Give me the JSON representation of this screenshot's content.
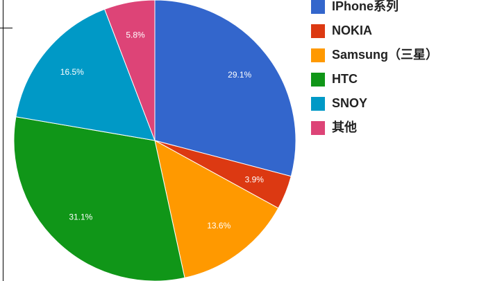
{
  "chart_data": {
    "type": "pie",
    "categories": [
      "IPhone系列",
      "NOKIA",
      "Samsung（三星）",
      "HTC",
      "SNOY",
      "其他"
    ],
    "values": [
      29.1,
      3.9,
      13.6,
      31.1,
      16.5,
      5.8
    ],
    "value_labels": [
      "29.1%",
      "3.9%",
      "13.6%",
      "31.1%",
      "16.5%",
      "5.8%"
    ],
    "colors": [
      "#3366cc",
      "#dc3912",
      "#ff9900",
      "#109618",
      "#0099c6",
      "#dd4477"
    ],
    "legend": "right"
  }
}
